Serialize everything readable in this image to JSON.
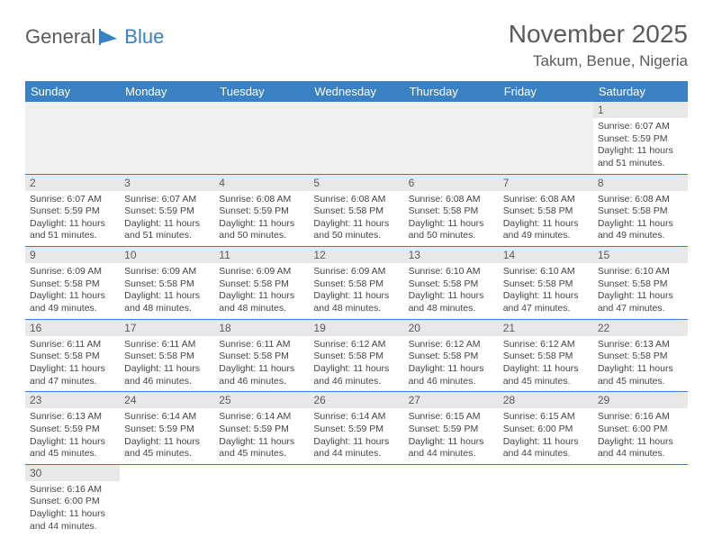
{
  "logo": {
    "text1": "General",
    "text2": "Blue"
  },
  "title": "November 2025",
  "location": "Takum, Benue, Nigeria",
  "colors": {
    "header_bg": "#3a81c4",
    "header_text": "#ffffff",
    "daynum_bg": "#e8e8e8",
    "text": "#5a5a5a",
    "rule": "#3a81c4"
  },
  "weekdays": [
    "Sunday",
    "Monday",
    "Tuesday",
    "Wednesday",
    "Thursday",
    "Friday",
    "Saturday"
  ],
  "leading_blanks": 6,
  "days": [
    {
      "n": 1,
      "sunrise": "6:07 AM",
      "sunset": "5:59 PM",
      "daylight": "11 hours and 51 minutes."
    },
    {
      "n": 2,
      "sunrise": "6:07 AM",
      "sunset": "5:59 PM",
      "daylight": "11 hours and 51 minutes."
    },
    {
      "n": 3,
      "sunrise": "6:07 AM",
      "sunset": "5:59 PM",
      "daylight": "11 hours and 51 minutes."
    },
    {
      "n": 4,
      "sunrise": "6:08 AM",
      "sunset": "5:59 PM",
      "daylight": "11 hours and 50 minutes."
    },
    {
      "n": 5,
      "sunrise": "6:08 AM",
      "sunset": "5:58 PM",
      "daylight": "11 hours and 50 minutes."
    },
    {
      "n": 6,
      "sunrise": "6:08 AM",
      "sunset": "5:58 PM",
      "daylight": "11 hours and 50 minutes."
    },
    {
      "n": 7,
      "sunrise": "6:08 AM",
      "sunset": "5:58 PM",
      "daylight": "11 hours and 49 minutes."
    },
    {
      "n": 8,
      "sunrise": "6:08 AM",
      "sunset": "5:58 PM",
      "daylight": "11 hours and 49 minutes."
    },
    {
      "n": 9,
      "sunrise": "6:09 AM",
      "sunset": "5:58 PM",
      "daylight": "11 hours and 49 minutes."
    },
    {
      "n": 10,
      "sunrise": "6:09 AM",
      "sunset": "5:58 PM",
      "daylight": "11 hours and 48 minutes."
    },
    {
      "n": 11,
      "sunrise": "6:09 AM",
      "sunset": "5:58 PM",
      "daylight": "11 hours and 48 minutes."
    },
    {
      "n": 12,
      "sunrise": "6:09 AM",
      "sunset": "5:58 PM",
      "daylight": "11 hours and 48 minutes."
    },
    {
      "n": 13,
      "sunrise": "6:10 AM",
      "sunset": "5:58 PM",
      "daylight": "11 hours and 48 minutes."
    },
    {
      "n": 14,
      "sunrise": "6:10 AM",
      "sunset": "5:58 PM",
      "daylight": "11 hours and 47 minutes."
    },
    {
      "n": 15,
      "sunrise": "6:10 AM",
      "sunset": "5:58 PM",
      "daylight": "11 hours and 47 minutes."
    },
    {
      "n": 16,
      "sunrise": "6:11 AM",
      "sunset": "5:58 PM",
      "daylight": "11 hours and 47 minutes."
    },
    {
      "n": 17,
      "sunrise": "6:11 AM",
      "sunset": "5:58 PM",
      "daylight": "11 hours and 46 minutes."
    },
    {
      "n": 18,
      "sunrise": "6:11 AM",
      "sunset": "5:58 PM",
      "daylight": "11 hours and 46 minutes."
    },
    {
      "n": 19,
      "sunrise": "6:12 AM",
      "sunset": "5:58 PM",
      "daylight": "11 hours and 46 minutes."
    },
    {
      "n": 20,
      "sunrise": "6:12 AM",
      "sunset": "5:58 PM",
      "daylight": "11 hours and 46 minutes."
    },
    {
      "n": 21,
      "sunrise": "6:12 AM",
      "sunset": "5:58 PM",
      "daylight": "11 hours and 45 minutes."
    },
    {
      "n": 22,
      "sunrise": "6:13 AM",
      "sunset": "5:58 PM",
      "daylight": "11 hours and 45 minutes."
    },
    {
      "n": 23,
      "sunrise": "6:13 AM",
      "sunset": "5:59 PM",
      "daylight": "11 hours and 45 minutes."
    },
    {
      "n": 24,
      "sunrise": "6:14 AM",
      "sunset": "5:59 PM",
      "daylight": "11 hours and 45 minutes."
    },
    {
      "n": 25,
      "sunrise": "6:14 AM",
      "sunset": "5:59 PM",
      "daylight": "11 hours and 45 minutes."
    },
    {
      "n": 26,
      "sunrise": "6:14 AM",
      "sunset": "5:59 PM",
      "daylight": "11 hours and 44 minutes."
    },
    {
      "n": 27,
      "sunrise": "6:15 AM",
      "sunset": "5:59 PM",
      "daylight": "11 hours and 44 minutes."
    },
    {
      "n": 28,
      "sunrise": "6:15 AM",
      "sunset": "6:00 PM",
      "daylight": "11 hours and 44 minutes."
    },
    {
      "n": 29,
      "sunrise": "6:16 AM",
      "sunset": "6:00 PM",
      "daylight": "11 hours and 44 minutes."
    },
    {
      "n": 30,
      "sunrise": "6:16 AM",
      "sunset": "6:00 PM",
      "daylight": "11 hours and 44 minutes."
    }
  ],
  "labels": {
    "sunrise": "Sunrise:",
    "sunset": "Sunset:",
    "daylight": "Daylight:"
  }
}
